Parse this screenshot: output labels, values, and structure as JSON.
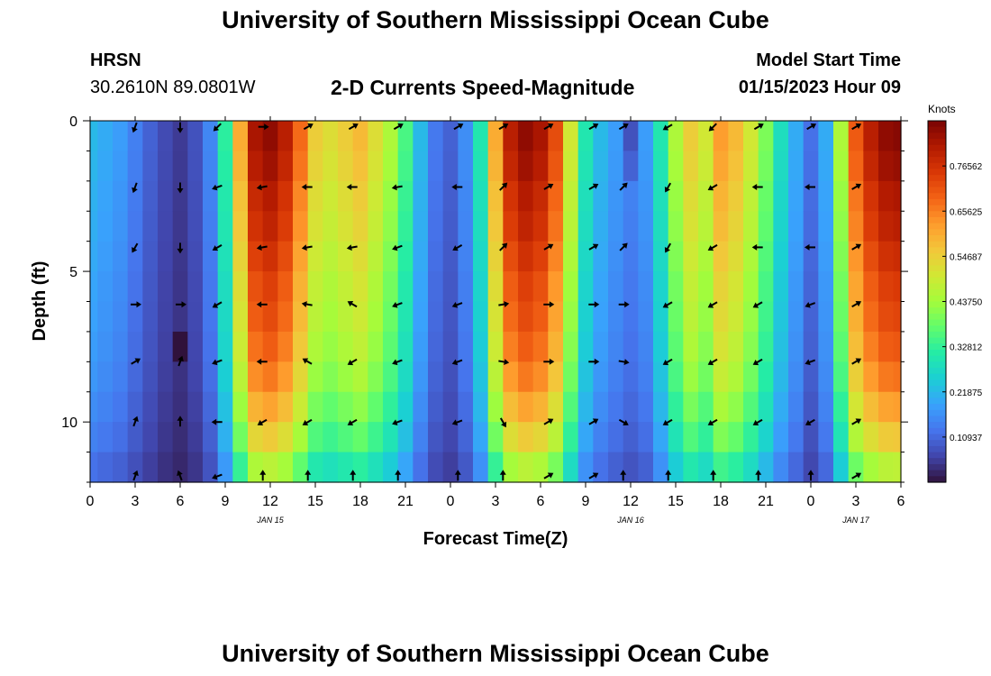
{
  "header": {
    "title": "University of Southern Mississippi Ocean Cube",
    "station": "HRSN",
    "coords": "30.2610N  89.0801W",
    "model_start_label": "Model Start Time",
    "model_start_value": "01/15/2023 Hour 09",
    "footer_title": "University of Southern Mississippi Ocean Cube"
  },
  "chart_data": {
    "type": "heatmap",
    "title": "2-D Currents Speed-Magnitude",
    "xlabel": "Forecast Time(Z)",
    "ylabel": "Depth (ft)",
    "x_tick_labels": [
      "0",
      "3",
      "6",
      "9",
      "12",
      "15",
      "18",
      "21",
      "0",
      "3",
      "6",
      "9",
      "12",
      "15",
      "18",
      "21",
      "0",
      "3",
      "6"
    ],
    "x_range_hours": [
      0,
      54
    ],
    "date_labels": [
      {
        "label": "JAN 15",
        "hour": 12
      },
      {
        "label": "JAN 16",
        "hour": 36
      },
      {
        "label": "JAN 17",
        "hour": 51
      }
    ],
    "y_tick_labels": [
      "0",
      "5",
      "10"
    ],
    "y_ticks": [
      0,
      5,
      10
    ],
    "y_range_ft": [
      0,
      12
    ],
    "colorbar": {
      "label": "Knots",
      "range": [
        0.0,
        0.875
      ],
      "tick_labels": [
        "0.10937",
        "0.21875",
        "0.32812",
        "0.43750",
        "0.54687",
        "0.65625",
        "0.76562"
      ],
      "ticks": [
        0.10937,
        0.21875,
        0.32812,
        0.4375,
        0.54687,
        0.65625,
        0.76562
      ],
      "colors": [
        "#30123b",
        "#4145ab",
        "#4675ed",
        "#39a2fc",
        "#1bcfd4",
        "#24eca6",
        "#61fc6c",
        "#a4fc3b",
        "#d1e834",
        "#f3c63a",
        "#fe9b2d",
        "#f36315",
        "#d93806",
        "#b11901",
        "#7a0403"
      ]
    },
    "grid": false,
    "time_profile_hours": [
      0,
      1,
      2,
      3,
      4,
      5,
      6,
      7,
      8,
      9,
      10,
      11,
      12,
      13,
      14,
      15,
      16,
      17,
      18,
      19,
      20,
      21,
      22,
      23,
      24,
      25,
      26,
      27,
      28,
      29,
      30,
      31,
      32,
      33,
      34,
      35,
      36,
      37,
      38,
      39,
      40,
      41,
      42,
      43,
      44,
      45,
      46,
      47,
      48,
      49,
      50,
      51,
      52,
      53,
      54
    ],
    "time_profile_knots": [
      0.22,
      0.2,
      0.18,
      0.14,
      0.1,
      0.07,
      0.05,
      0.08,
      0.15,
      0.32,
      0.6,
      0.82,
      0.85,
      0.8,
      0.68,
      0.55,
      0.52,
      0.55,
      0.58,
      0.52,
      0.45,
      0.35,
      0.22,
      0.13,
      0.1,
      0.16,
      0.3,
      0.6,
      0.8,
      0.85,
      0.82,
      0.72,
      0.5,
      0.3,
      0.22,
      0.18,
      0.15,
      0.18,
      0.3,
      0.45,
      0.55,
      0.5,
      0.62,
      0.58,
      0.5,
      0.4,
      0.28,
      0.2,
      0.12,
      0.2,
      0.45,
      0.7,
      0.8,
      0.85,
      0.86
    ],
    "depth_factor": [
      1.0,
      0.98,
      0.95,
      0.93,
      0.9,
      0.87,
      0.85,
      0.82,
      0.78,
      0.72,
      0.65,
      0.55
    ],
    "special_cells": [
      {
        "hour": 6,
        "depth": 7.0,
        "knots": 0.0
      },
      {
        "hour": 36,
        "depth": 0.0,
        "knots": 0.08
      },
      {
        "hour": 36,
        "depth": 1.0,
        "knots": 0.1
      }
    ],
    "arrow_times_hours": [
      3,
      6,
      8.5,
      11.5,
      14.5,
      17.5,
      20.5,
      24.5,
      27.5,
      30.5,
      33.5,
      35.5,
      38.5,
      41.5,
      44.5,
      48,
      51
    ],
    "arrow_depths_ft": [
      0.2,
      2.2,
      4.2,
      6.1,
      8.0,
      10.0,
      11.8
    ],
    "arrow_directions_deg": [
      [
        200,
        180,
        225,
        90,
        60,
        60,
        60,
        60,
        60,
        60,
        60,
        60,
        240,
        225,
        60,
        60,
        60
      ],
      [
        200,
        180,
        250,
        260,
        270,
        270,
        260,
        270,
        45,
        60,
        60,
        45,
        210,
        240,
        270,
        270,
        60
      ],
      [
        210,
        180,
        240,
        260,
        260,
        260,
        250,
        240,
        45,
        60,
        60,
        45,
        210,
        240,
        270,
        270,
        60
      ],
      [
        90,
        90,
        240,
        270,
        280,
        300,
        250,
        250,
        80,
        90,
        90,
        90,
        240,
        240,
        240,
        250,
        60
      ],
      [
        60,
        20,
        250,
        270,
        300,
        240,
        250,
        250,
        100,
        90,
        90,
        100,
        240,
        240,
        240,
        250,
        60
      ],
      [
        20,
        0,
        270,
        240,
        240,
        240,
        250,
        250,
        150,
        60,
        60,
        120,
        240,
        240,
        240,
        240,
        60
      ],
      [
        20,
        340,
        250,
        0,
        0,
        0,
        0,
        0,
        0,
        60,
        60,
        0,
        0,
        0,
        0,
        0,
        60
      ]
    ]
  }
}
